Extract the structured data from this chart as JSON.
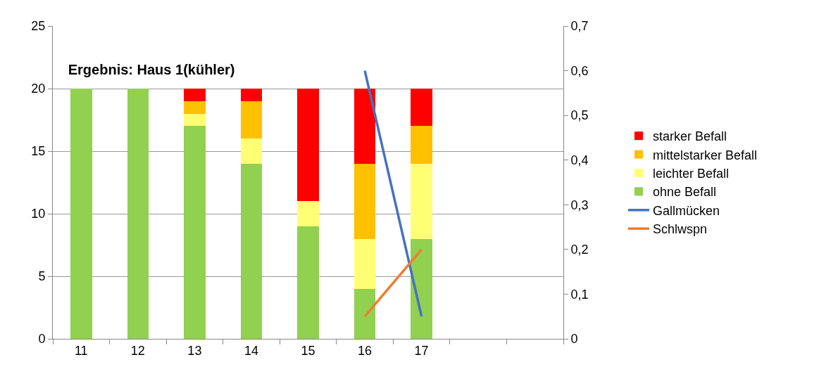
{
  "chart_data": {
    "type": "bar",
    "title": "Ergebnis: Haus 1(kühler)",
    "categories": [
      "11",
      "12",
      "13",
      "14",
      "15",
      "16",
      "17",
      null,
      null
    ],
    "stacked": true,
    "series": [
      {
        "name": "ohne Befall",
        "color": "#92d050",
        "values": [
          20,
          20,
          17,
          14,
          9,
          4,
          8,
          null,
          null
        ]
      },
      {
        "name": "leichter Befall",
        "color": "#ffff75",
        "values": [
          0,
          0,
          1,
          2,
          2,
          4,
          6,
          null,
          null
        ]
      },
      {
        "name": "mittelstarker Befall",
        "color": "#ffc000",
        "values": [
          0,
          0,
          1,
          3,
          0,
          6,
          3,
          null,
          null
        ]
      },
      {
        "name": "starker Befall",
        "color": "#ff0000",
        "values": [
          0,
          0,
          1,
          1,
          9,
          6,
          3,
          null,
          null
        ]
      },
      {
        "name": "Gallmücken",
        "type": "line",
        "axis": "y2",
        "color": "#4472c4",
        "values": [
          null,
          null,
          null,
          null,
          null,
          0.6,
          0.05,
          null,
          null
        ]
      },
      {
        "name": "Schlwspn",
        "type": "line",
        "axis": "y2",
        "color": "#ed7d31",
        "values": [
          null,
          null,
          null,
          null,
          null,
          0.05,
          0.2,
          null,
          null
        ]
      }
    ],
    "ylim": [
      0,
      25
    ],
    "yticks": [
      0,
      5,
      10,
      15,
      20,
      25
    ],
    "y2lim": [
      0,
      0.7
    ],
    "y2ticks": [
      {
        "value": 0,
        "label": "0"
      },
      {
        "value": 0.1,
        "label": "0,1"
      },
      {
        "value": 0.2,
        "label": "0,2"
      },
      {
        "value": 0.3,
        "label": "0,3"
      },
      {
        "value": 0.4,
        "label": "0,4"
      },
      {
        "value": 0.5,
        "label": "0,5"
      },
      {
        "value": 0.6,
        "label": "0,6"
      },
      {
        "value": 0.7,
        "label": "0,7"
      }
    ],
    "grid": "y",
    "legend": "right",
    "marker": "none",
    "line_style": "solid"
  }
}
